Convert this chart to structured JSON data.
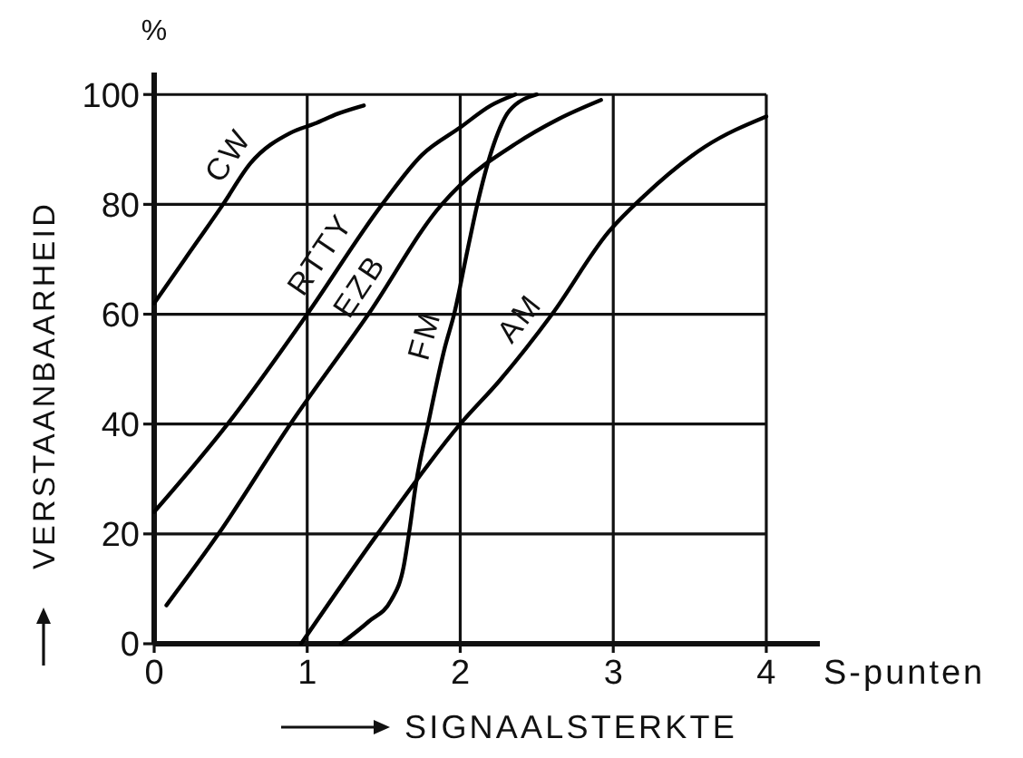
{
  "chart_data": {
    "type": "line",
    "xlabel": "SIGNAALSTERKTE",
    "ylabel": "VERSTAANBAARHEID",
    "annotations": [
      "%",
      "S-punten"
    ],
    "xlim": [
      0,
      4.35
    ],
    "ylim": [
      0,
      104
    ],
    "xticks": [
      0,
      1,
      2,
      3,
      4
    ],
    "yticks": [
      0,
      20,
      40,
      60,
      80,
      100
    ],
    "grid": true,
    "series": [
      {
        "name": "CW",
        "color": "#000000",
        "x": [
          0,
          0.2,
          0.45,
          0.63,
          0.89,
          1.05,
          1.2,
          1.37
        ],
        "values": [
          62,
          70,
          80,
          87.5,
          93,
          94.7,
          96.5,
          98
        ]
      },
      {
        "name": "RTTY",
        "color": "#000000",
        "x": [
          0,
          0.48,
          1.0,
          1.49,
          1.75,
          2.0,
          2.2,
          2.36
        ],
        "values": [
          24,
          40,
          60,
          80,
          89,
          94,
          98,
          100
        ]
      },
      {
        "name": "EZB",
        "color": "#000000",
        "x": [
          0.08,
          0.42,
          0.89,
          1.4,
          1.88,
          2.0,
          2.36,
          2.64,
          2.92
        ],
        "values": [
          7,
          20,
          40,
          60,
          80,
          83.5,
          91,
          95.5,
          99
        ]
      },
      {
        "name": "FM",
        "color": "#000000",
        "x": [
          1.22,
          1.4,
          1.55,
          1.63,
          1.67,
          1.71,
          1.79,
          1.9,
          1.96,
          2.05,
          2.12,
          2.22,
          2.32,
          2.5
        ],
        "values": [
          0,
          4,
          8,
          14,
          21,
          29,
          40,
          54,
          60,
          72,
          81,
          91,
          97,
          100
        ]
      },
      {
        "name": "AM",
        "color": "#000000",
        "x": [
          0.96,
          1.46,
          2.0,
          2.26,
          2.6,
          2.97,
          3.2,
          3.6,
          4.0
        ],
        "values": [
          0,
          20,
          40,
          48,
          60,
          75,
          81.5,
          90.5,
          96
        ]
      }
    ]
  }
}
